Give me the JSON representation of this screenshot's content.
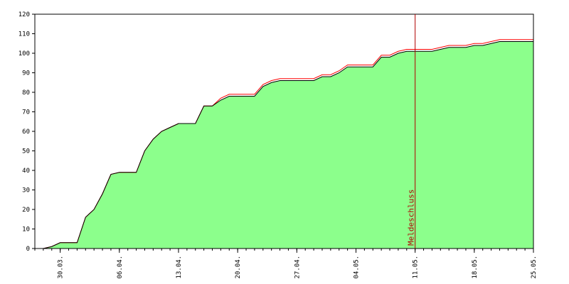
{
  "chart_data": {
    "type": "area",
    "title": "",
    "xlabel": "",
    "ylabel": "",
    "ylim": [
      0,
      120
    ],
    "yticks": [
      0,
      10,
      20,
      30,
      40,
      50,
      60,
      70,
      80,
      90,
      100,
      110,
      120
    ],
    "xlim": [
      "2025-03-27",
      "2025-05-25"
    ],
    "xticks": [
      {
        "date": "2025-03-30",
        "label": "30.03."
      },
      {
        "date": "2025-04-06",
        "label": "06.04."
      },
      {
        "date": "2025-04-13",
        "label": "13.04."
      },
      {
        "date": "2025-04-20",
        "label": "20.04."
      },
      {
        "date": "2025-04-27",
        "label": "27.04."
      },
      {
        "date": "2025-05-04",
        "label": "04.05."
      },
      {
        "date": "2025-05-11",
        "label": "11.05."
      },
      {
        "date": "2025-05-18",
        "label": "18.05."
      },
      {
        "date": "2025-05-25",
        "label": "25.05."
      }
    ],
    "grid": false,
    "series": [
      {
        "color": "#000000",
        "fill": "#8cff8c",
        "points": [
          [
            "2025-03-28",
            0
          ],
          [
            "2025-03-29",
            1
          ],
          [
            "2025-03-30",
            3
          ],
          [
            "2025-03-31",
            3
          ],
          [
            "2025-04-01",
            3
          ],
          [
            "2025-04-02",
            16
          ],
          [
            "2025-04-03",
            20
          ],
          [
            "2025-04-04",
            28
          ],
          [
            "2025-04-05",
            38
          ],
          [
            "2025-04-06",
            39
          ],
          [
            "2025-04-07",
            39
          ],
          [
            "2025-04-08",
            39
          ],
          [
            "2025-04-09",
            50
          ],
          [
            "2025-04-10",
            56
          ],
          [
            "2025-04-11",
            60
          ],
          [
            "2025-04-12",
            62
          ],
          [
            "2025-04-13",
            64
          ],
          [
            "2025-04-14",
            64
          ],
          [
            "2025-04-15",
            64
          ],
          [
            "2025-04-16",
            73
          ],
          [
            "2025-04-17",
            73
          ],
          [
            "2025-04-18",
            76
          ],
          [
            "2025-04-19",
            78
          ],
          [
            "2025-04-20",
            78
          ],
          [
            "2025-04-21",
            78
          ],
          [
            "2025-04-22",
            78
          ],
          [
            "2025-04-23",
            83
          ],
          [
            "2025-04-24",
            85
          ],
          [
            "2025-04-25",
            86
          ],
          [
            "2025-04-26",
            86
          ],
          [
            "2025-04-27",
            86
          ],
          [
            "2025-04-28",
            86
          ],
          [
            "2025-04-29",
            86
          ],
          [
            "2025-04-30",
            88
          ],
          [
            "2025-05-01",
            88
          ],
          [
            "2025-05-02",
            90
          ],
          [
            "2025-05-03",
            93
          ],
          [
            "2025-05-04",
            93
          ],
          [
            "2025-05-05",
            93
          ],
          [
            "2025-05-06",
            93
          ],
          [
            "2025-05-07",
            98
          ],
          [
            "2025-05-08",
            98
          ],
          [
            "2025-05-09",
            100
          ],
          [
            "2025-05-10",
            101
          ],
          [
            "2025-05-11",
            101
          ],
          [
            "2025-05-12",
            101
          ],
          [
            "2025-05-13",
            101
          ],
          [
            "2025-05-14",
            102
          ],
          [
            "2025-05-15",
            103
          ],
          [
            "2025-05-16",
            103
          ],
          [
            "2025-05-17",
            103
          ],
          [
            "2025-05-18",
            104
          ],
          [
            "2025-05-19",
            104
          ],
          [
            "2025-05-20",
            105
          ],
          [
            "2025-05-21",
            106
          ],
          [
            "2025-05-22",
            106
          ],
          [
            "2025-05-23",
            106
          ],
          [
            "2025-05-24",
            106
          ],
          [
            "2025-05-25",
            106
          ]
        ]
      },
      {
        "color": "#ff0000",
        "points": [
          [
            "2025-03-28",
            0
          ],
          [
            "2025-03-29",
            1
          ],
          [
            "2025-03-30",
            3
          ],
          [
            "2025-03-31",
            3
          ],
          [
            "2025-04-01",
            3
          ],
          [
            "2025-04-02",
            16
          ],
          [
            "2025-04-03",
            20
          ],
          [
            "2025-04-04",
            28
          ],
          [
            "2025-04-05",
            38
          ],
          [
            "2025-04-06",
            39
          ],
          [
            "2025-04-07",
            39
          ],
          [
            "2025-04-08",
            39
          ],
          [
            "2025-04-09",
            50
          ],
          [
            "2025-04-10",
            56
          ],
          [
            "2025-04-11",
            60
          ],
          [
            "2025-04-12",
            62
          ],
          [
            "2025-04-13",
            64
          ],
          [
            "2025-04-14",
            64
          ],
          [
            "2025-04-15",
            64
          ],
          [
            "2025-04-16",
            73
          ],
          [
            "2025-04-17",
            73
          ],
          [
            "2025-04-18",
            77
          ],
          [
            "2025-04-19",
            79
          ],
          [
            "2025-04-20",
            79
          ],
          [
            "2025-04-21",
            79
          ],
          [
            "2025-04-22",
            79
          ],
          [
            "2025-04-23",
            84
          ],
          [
            "2025-04-24",
            86
          ],
          [
            "2025-04-25",
            87
          ],
          [
            "2025-04-26",
            87
          ],
          [
            "2025-04-27",
            87
          ],
          [
            "2025-04-28",
            87
          ],
          [
            "2025-04-29",
            87
          ],
          [
            "2025-04-30",
            89
          ],
          [
            "2025-05-01",
            89
          ],
          [
            "2025-05-02",
            91
          ],
          [
            "2025-05-03",
            94
          ],
          [
            "2025-05-04",
            94
          ],
          [
            "2025-05-05",
            94
          ],
          [
            "2025-05-06",
            94
          ],
          [
            "2025-05-07",
            99
          ],
          [
            "2025-05-08",
            99
          ],
          [
            "2025-05-09",
            101
          ],
          [
            "2025-05-10",
            102
          ],
          [
            "2025-05-11",
            102
          ],
          [
            "2025-05-12",
            102
          ],
          [
            "2025-05-13",
            102
          ],
          [
            "2025-05-14",
            103
          ],
          [
            "2025-05-15",
            104
          ],
          [
            "2025-05-16",
            104
          ],
          [
            "2025-05-17",
            104
          ],
          [
            "2025-05-18",
            105
          ],
          [
            "2025-05-19",
            105
          ],
          [
            "2025-05-20",
            106
          ],
          [
            "2025-05-21",
            107
          ],
          [
            "2025-05-22",
            107
          ],
          [
            "2025-05-23",
            107
          ],
          [
            "2025-05-24",
            107
          ],
          [
            "2025-05-25",
            107
          ]
        ]
      }
    ],
    "annotations": [
      {
        "date": "2025-05-11",
        "label": "Meldeschluss",
        "color": "#b00000"
      }
    ]
  }
}
